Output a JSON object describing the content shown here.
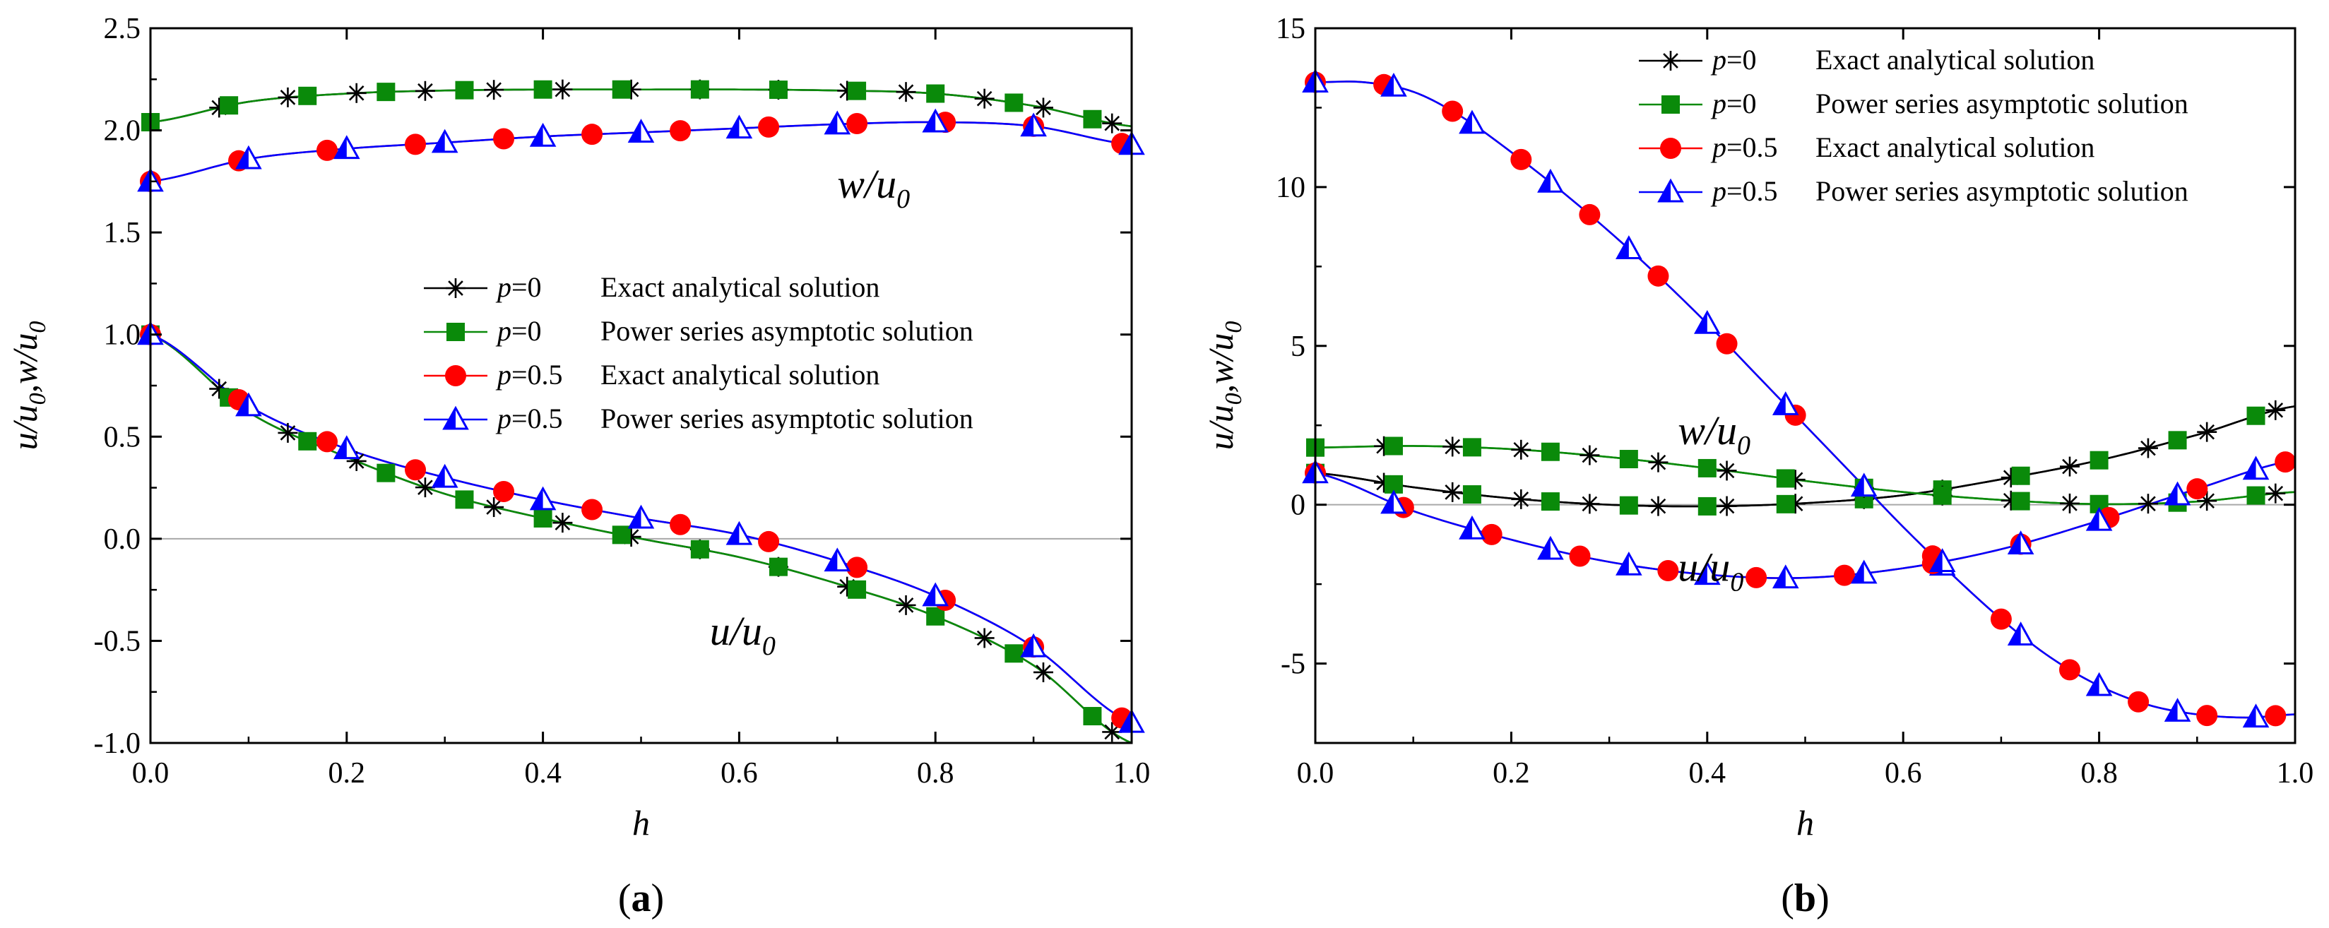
{
  "colors": {
    "black": "#000000",
    "green": "#0a8a0a",
    "red": "#ff0000",
    "blue": "#0000ff",
    "zero_line": "#a8a8a8"
  },
  "legend_labels": {
    "p0": "p",
    "p0_eq": "=0",
    "p05_eq": "=0.5",
    "exact": "Exact analytical solution",
    "power": "Power series asymptotic solution"
  },
  "chart_data": [
    {
      "type": "line",
      "panel_label": "(a)",
      "panel_label_letter": "a",
      "xlabel": "h",
      "ylabel_parts": [
        "u/u",
        "0",
        ",w/u",
        "0"
      ],
      "xlim": [
        0,
        1
      ],
      "ylim": [
        -1,
        2.5
      ],
      "xticks": [
        0.0,
        0.2,
        0.4,
        0.6,
        0.8,
        1.0
      ],
      "yticks": [
        -1.0,
        -0.5,
        0.0,
        0.5,
        1.0,
        1.5,
        2.0,
        2.5
      ],
      "xtick_labels": [
        "0.0",
        "0.2",
        "0.4",
        "0.6",
        "0.8",
        "1.0"
      ],
      "ytick_labels": [
        "-1.0",
        "-0.5",
        "0.0",
        "0.5",
        "1.0",
        "1.5",
        "2.0",
        "2.5"
      ],
      "annotations": [
        {
          "text": "w/u",
          "sub": "0",
          "at": [
            0.7,
            1.67
          ]
        },
        {
          "text": "u/u",
          "sub": "0",
          "at": [
            0.57,
            -0.52
          ]
        }
      ],
      "legend_position": "center-right",
      "series": [
        {
          "name": "p=0 Exact analytical solution w/u0",
          "color": "black",
          "marker": "asterisk",
          "x": [
            0.0,
            0.1,
            0.2,
            0.3,
            0.4,
            0.5,
            0.6,
            0.7,
            0.8,
            0.9,
            1.0
          ],
          "y": [
            2.04,
            2.14,
            2.18,
            2.195,
            2.2,
            2.2,
            2.2,
            2.195,
            2.18,
            2.12,
            2.02
          ],
          "marker_x": [
            0.07,
            0.14,
            0.21,
            0.28,
            0.35,
            0.42,
            0.49,
            0.56,
            0.64,
            0.71,
            0.77,
            0.85,
            0.91,
            0.98
          ]
        },
        {
          "name": "p=0 Power series asymptotic solution w/u0",
          "color": "green",
          "marker": "square",
          "x": [
            0.0,
            0.1,
            0.2,
            0.3,
            0.4,
            0.5,
            0.6,
            0.7,
            0.8,
            0.9,
            1.0
          ],
          "y": [
            2.04,
            2.14,
            2.18,
            2.195,
            2.2,
            2.2,
            2.2,
            2.195,
            2.18,
            2.12,
            2.02
          ],
          "marker_x": [
            0.0,
            0.08,
            0.16,
            0.24,
            0.32,
            0.4,
            0.48,
            0.56,
            0.64,
            0.72,
            0.8,
            0.88,
            0.96
          ]
        },
        {
          "name": "p=0.5 Exact analytical solution w/u0",
          "color": "red",
          "marker": "circle",
          "x": [
            0.0,
            0.1,
            0.2,
            0.3,
            0.4,
            0.5,
            0.6,
            0.7,
            0.8,
            0.9,
            1.0
          ],
          "y": [
            1.75,
            1.86,
            1.91,
            1.94,
            1.97,
            1.99,
            2.01,
            2.03,
            2.04,
            2.02,
            1.93
          ],
          "marker_x": [
            0.0,
            0.09,
            0.18,
            0.27,
            0.36,
            0.45,
            0.54,
            0.63,
            0.72,
            0.81,
            0.9,
            0.99
          ]
        },
        {
          "name": "p=0.5 Power series asymptotic solution w/u0",
          "color": "blue",
          "marker": "triangle",
          "x": [
            0.0,
            0.1,
            0.2,
            0.3,
            0.4,
            0.5,
            0.6,
            0.7,
            0.8,
            0.9,
            1.0
          ],
          "y": [
            1.75,
            1.86,
            1.91,
            1.94,
            1.97,
            1.99,
            2.01,
            2.03,
            2.04,
            2.02,
            1.93
          ],
          "marker_x": [
            0.0,
            0.1,
            0.2,
            0.3,
            0.4,
            0.5,
            0.6,
            0.7,
            0.8,
            0.9,
            1.0
          ]
        },
        {
          "name": "p=0 Exact analytical solution u/u0",
          "color": "black",
          "marker": "asterisk",
          "x": [
            0.0,
            0.1,
            0.2,
            0.3,
            0.4,
            0.5,
            0.6,
            0.7,
            0.8,
            0.9,
            1.0
          ],
          "y": [
            1.0,
            0.62,
            0.4,
            0.22,
            0.1,
            0.0,
            -0.09,
            -0.22,
            -0.38,
            -0.62,
            -1.0
          ],
          "marker_x": [
            0.07,
            0.14,
            0.21,
            0.28,
            0.35,
            0.42,
            0.49,
            0.56,
            0.64,
            0.71,
            0.77,
            0.85,
            0.91,
            0.98
          ]
        },
        {
          "name": "p=0 Power series asymptotic solution u/u0",
          "color": "green",
          "marker": "square",
          "x": [
            0.0,
            0.1,
            0.2,
            0.3,
            0.4,
            0.5,
            0.6,
            0.7,
            0.8,
            0.9,
            1.0
          ],
          "y": [
            1.0,
            0.62,
            0.4,
            0.22,
            0.1,
            0.0,
            -0.09,
            -0.22,
            -0.38,
            -0.62,
            -1.0
          ],
          "marker_x": [
            0.0,
            0.08,
            0.16,
            0.24,
            0.32,
            0.4,
            0.48,
            0.56,
            0.64,
            0.72,
            0.8,
            0.88,
            0.96
          ]
        },
        {
          "name": "p=0.5 Exact analytical solution u/u0",
          "color": "red",
          "marker": "circle",
          "x": [
            0.0,
            0.1,
            0.2,
            0.3,
            0.4,
            0.5,
            0.6,
            0.7,
            0.8,
            0.9,
            1.0
          ],
          "y": [
            1.0,
            0.65,
            0.44,
            0.3,
            0.19,
            0.1,
            0.02,
            -0.11,
            -0.28,
            -0.53,
            -0.9
          ],
          "marker_x": [
            0.0,
            0.09,
            0.18,
            0.27,
            0.36,
            0.45,
            0.54,
            0.63,
            0.72,
            0.81,
            0.9,
            0.99
          ]
        },
        {
          "name": "p=0.5 Power series asymptotic solution u/u0",
          "color": "blue",
          "marker": "triangle",
          "x": [
            0.0,
            0.1,
            0.2,
            0.3,
            0.4,
            0.5,
            0.6,
            0.7,
            0.8,
            0.9,
            1.0
          ],
          "y": [
            1.0,
            0.65,
            0.44,
            0.3,
            0.19,
            0.1,
            0.02,
            -0.11,
            -0.28,
            -0.53,
            -0.9
          ],
          "marker_x": [
            0.0,
            0.1,
            0.2,
            0.3,
            0.4,
            0.5,
            0.6,
            0.7,
            0.8,
            0.9,
            1.0
          ]
        }
      ]
    },
    {
      "type": "line",
      "panel_label": "(b)",
      "panel_label_letter": "b",
      "xlabel": "h",
      "ylabel_parts": [
        "u/u",
        "0",
        ",w/u",
        "0"
      ],
      "xlim": [
        0,
        1
      ],
      "ylim": [
        -7.5,
        15
      ],
      "xticks": [
        0.0,
        0.2,
        0.4,
        0.6,
        0.8,
        1.0
      ],
      "yticks": [
        -5,
        0,
        5,
        10,
        15
      ],
      "xtick_labels": [
        "0.0",
        "0.2",
        "0.4",
        "0.6",
        "0.8",
        "1.0"
      ],
      "ytick_labels": [
        "-5",
        "0",
        "5",
        "10",
        "15"
      ],
      "annotations": [
        {
          "text": "w/u",
          "sub": "0",
          "at": [
            0.37,
            1.9
          ]
        },
        {
          "text": "u/u",
          "sub": "0",
          "at": [
            0.37,
            -2.4
          ]
        }
      ],
      "legend_position": "top-right",
      "series": [
        {
          "name": "p=0 Exact analytical solution u/u0",
          "color": "black",
          "marker": "asterisk",
          "x": [
            0.0,
            0.1,
            0.2,
            0.3,
            0.4,
            0.5,
            0.6,
            0.7,
            0.8,
            0.9,
            1.0
          ],
          "y": [
            1.0,
            0.55,
            0.2,
            0.0,
            -0.05,
            0.05,
            0.3,
            0.8,
            1.4,
            2.2,
            3.1
          ],
          "marker_x": [
            0.07,
            0.14,
            0.21,
            0.28,
            0.35,
            0.42,
            0.49,
            0.56,
            0.64,
            0.71,
            0.77,
            0.85,
            0.91,
            0.98
          ]
        },
        {
          "name": "p=0 Power series asymptotic solution u/u0",
          "color": "black",
          "marker": "square",
          "x": [
            0.0,
            0.1,
            0.2,
            0.3,
            0.4,
            0.5,
            0.6,
            0.7,
            0.8,
            0.9,
            1.0
          ],
          "y": [
            1.0,
            0.55,
            0.2,
            0.0,
            -0.05,
            0.05,
            0.3,
            0.8,
            1.4,
            2.2,
            3.1
          ],
          "marker_x": [
            0.0,
            0.08,
            0.16,
            0.24,
            0.32,
            0.4,
            0.48,
            0.56,
            0.64,
            0.72,
            0.8,
            0.88,
            0.96
          ],
          "marker_color": "green"
        },
        {
          "name": "p=0 Exact analytical solution w/u0",
          "color": "green",
          "marker": "asterisk",
          "x": [
            0.0,
            0.1,
            0.2,
            0.3,
            0.4,
            0.5,
            0.6,
            0.7,
            0.8,
            0.9,
            1.0
          ],
          "y": [
            1.8,
            1.85,
            1.75,
            1.5,
            1.15,
            0.75,
            0.4,
            0.15,
            0.02,
            0.1,
            0.4
          ],
          "marker_x": [
            0.07,
            0.14,
            0.21,
            0.28,
            0.35,
            0.42,
            0.49,
            0.56,
            0.64,
            0.71,
            0.77,
            0.85,
            0.91,
            0.98
          ],
          "marker_color": "black"
        },
        {
          "name": "p=0 Power series asymptotic solution w/u0",
          "color": "green",
          "marker": "square",
          "x": [
            0.0,
            0.1,
            0.2,
            0.3,
            0.4,
            0.5,
            0.6,
            0.7,
            0.8,
            0.9,
            1.0
          ],
          "y": [
            1.8,
            1.85,
            1.75,
            1.5,
            1.15,
            0.75,
            0.4,
            0.15,
            0.02,
            0.1,
            0.4
          ],
          "marker_x": [
            0.0,
            0.08,
            0.16,
            0.24,
            0.32,
            0.4,
            0.48,
            0.56,
            0.64,
            0.72,
            0.8,
            0.88,
            0.96
          ]
        },
        {
          "name": "p=0.5 Exact analytical solution w/u0",
          "color": "red",
          "marker": "circle",
          "x": [
            0.0,
            0.05,
            0.1,
            0.15,
            0.2,
            0.25,
            0.3,
            0.35,
            0.4,
            0.45,
            0.5,
            0.55,
            0.6,
            0.65,
            0.7,
            0.75,
            0.8,
            0.85,
            0.9,
            0.95,
            1.0
          ],
          "y": [
            13.3,
            13.3,
            13.0,
            12.2,
            11.1,
            9.9,
            8.6,
            7.2,
            5.7,
            4.1,
            2.5,
            0.9,
            -0.7,
            -2.2,
            -3.6,
            -4.8,
            -5.7,
            -6.3,
            -6.6,
            -6.7,
            -6.6
          ],
          "marker_x": [
            0.0,
            0.07,
            0.14,
            0.21,
            0.28,
            0.35,
            0.42,
            0.49,
            0.63,
            0.7,
            0.77,
            0.84,
            0.91,
            0.98
          ]
        },
        {
          "name": "p=0.5 Power series asymptotic solution w/u0",
          "color": "blue",
          "marker": "triangle",
          "x": [
            0.0,
            0.05,
            0.1,
            0.15,
            0.2,
            0.25,
            0.3,
            0.35,
            0.4,
            0.45,
            0.5,
            0.55,
            0.6,
            0.65,
            0.7,
            0.75,
            0.8,
            0.85,
            0.9,
            0.95,
            1.0
          ],
          "y": [
            13.3,
            13.3,
            13.0,
            12.2,
            11.1,
            9.9,
            8.6,
            7.2,
            5.7,
            4.1,
            2.5,
            0.9,
            -0.7,
            -2.2,
            -3.6,
            -4.8,
            -5.7,
            -6.3,
            -6.6,
            -6.7,
            -6.6
          ],
          "marker_x": [
            0.0,
            0.08,
            0.16,
            0.24,
            0.32,
            0.4,
            0.48,
            0.56,
            0.64,
            0.72,
            0.8,
            0.88,
            0.96
          ]
        },
        {
          "name": "p=0.5 Exact analytical solution u/u0",
          "color": "red",
          "marker": "circle",
          "x": [
            0.0,
            0.1,
            0.2,
            0.3,
            0.4,
            0.5,
            0.6,
            0.7,
            0.8,
            0.9,
            1.0
          ],
          "y": [
            1.0,
            -0.2,
            -1.1,
            -1.8,
            -2.2,
            -2.3,
            -2.0,
            -1.4,
            -0.5,
            0.5,
            1.4
          ],
          "marker_x": [
            0.0,
            0.09,
            0.18,
            0.27,
            0.36,
            0.45,
            0.54,
            0.63,
            0.72,
            0.81,
            0.9,
            0.99
          ]
        },
        {
          "name": "p=0.5 Power series asymptotic solution u/u0",
          "color": "blue",
          "marker": "triangle",
          "x": [
            0.0,
            0.1,
            0.2,
            0.3,
            0.4,
            0.5,
            0.6,
            0.7,
            0.8,
            0.9,
            1.0
          ],
          "y": [
            1.0,
            -0.2,
            -1.1,
            -1.8,
            -2.2,
            -2.3,
            -2.0,
            -1.4,
            -0.5,
            0.5,
            1.4
          ],
          "marker_x": [
            0.0,
            0.08,
            0.16,
            0.24,
            0.32,
            0.4,
            0.48,
            0.56,
            0.64,
            0.72,
            0.8,
            0.88,
            0.96
          ]
        }
      ]
    }
  ]
}
